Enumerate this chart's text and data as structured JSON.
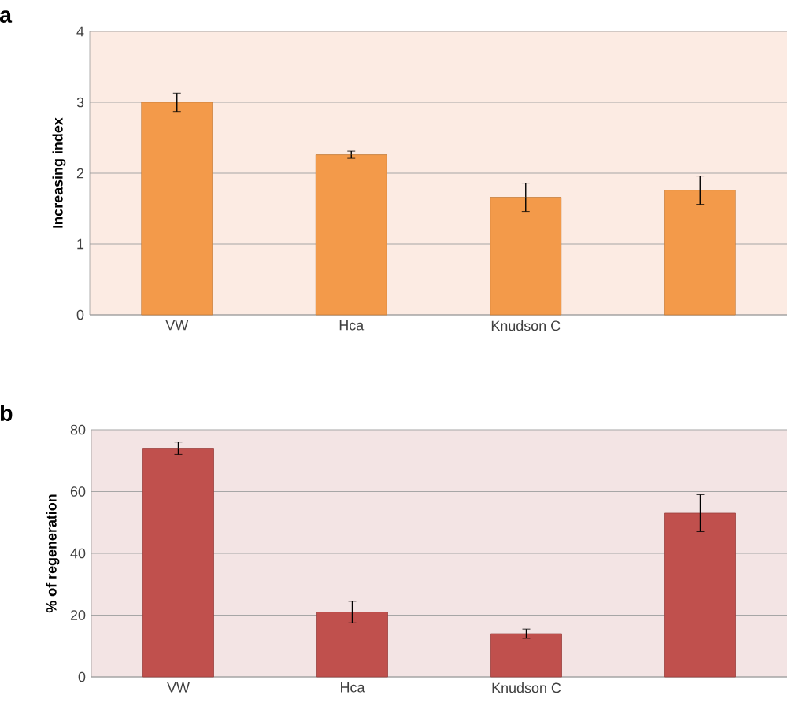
{
  "chart_data": [
    {
      "type": "bar",
      "title": "a",
      "ylabel": "Increasing index",
      "categories": [
        "VW",
        "Hca",
        "Knudson C",
        null
      ],
      "values": [
        3.0,
        2.26,
        1.66,
        1.76
      ],
      "errors": [
        0.13,
        0.05,
        0.2,
        0.2
      ],
      "color": "#f39a4a",
      "ylim": [
        0,
        4
      ],
      "yticks": [
        0,
        1,
        2,
        3,
        4
      ],
      "grid": "y"
    },
    {
      "type": "bar",
      "title": "b",
      "ylabel": "% of regeneration",
      "categories": [
        "VW",
        "Hca",
        "Knudson C",
        null
      ],
      "values": [
        74,
        21,
        14,
        53
      ],
      "errors": [
        2,
        3.5,
        1.5,
        6
      ],
      "color": "#c0504d",
      "ylim": [
        0,
        80
      ],
      "yticks": [
        0,
        20,
        40,
        60,
        80
      ],
      "grid": "y"
    }
  ]
}
